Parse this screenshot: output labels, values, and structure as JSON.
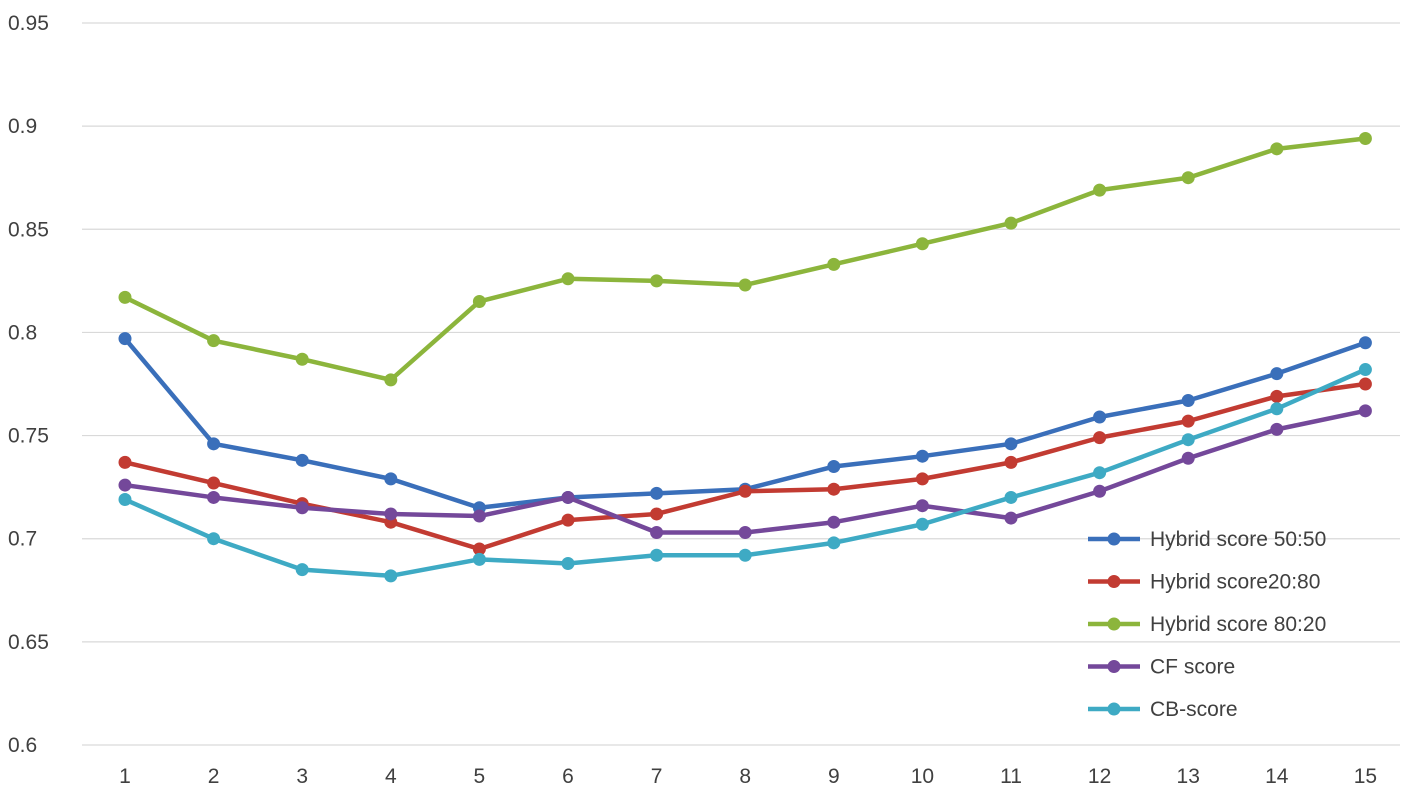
{
  "chart_data": {
    "type": "line",
    "title": "",
    "xlabel": "",
    "ylabel": "",
    "ylim": [
      0.6,
      0.95
    ],
    "y_ticks": [
      "0.6",
      "0.65",
      "0.7",
      "0.75",
      "0.8",
      "0.85",
      "0.9",
      "0.95"
    ],
    "grid": "horizontal",
    "legend_position": "bottom-right",
    "x": [
      "1",
      "2",
      "3",
      "4",
      "5",
      "6",
      "7",
      "8",
      "9",
      "10",
      "11",
      "12",
      "13",
      "14",
      "15"
    ],
    "series": [
      {
        "name": "Hybrid score 50:50",
        "color": "#3a6fba",
        "values": [
          0.797,
          0.746,
          0.738,
          0.729,
          0.715,
          0.72,
          0.722,
          0.724,
          0.735,
          0.74,
          0.746,
          0.759,
          0.767,
          0.78,
          0.795
        ]
      },
      {
        "name": "Hybrid score20:80",
        "color": "#c23b32",
        "values": [
          0.737,
          0.727,
          0.717,
          0.708,
          0.695,
          0.709,
          0.712,
          0.723,
          0.724,
          0.729,
          0.737,
          0.749,
          0.757,
          0.769,
          0.775
        ]
      },
      {
        "name": "Hybrid score 80:20",
        "color": "#8cb53c",
        "values": [
          0.817,
          0.796,
          0.787,
          0.777,
          0.815,
          0.826,
          0.825,
          0.823,
          0.833,
          0.843,
          0.853,
          0.869,
          0.875,
          0.889,
          0.894
        ]
      },
      {
        "name": "CF score",
        "color": "#74489a",
        "values": [
          0.726,
          0.72,
          0.715,
          0.712,
          0.711,
          0.72,
          0.703,
          0.703,
          0.708,
          0.716,
          0.71,
          0.723,
          0.739,
          0.753,
          0.762
        ]
      },
      {
        "name": "CB-score",
        "color": "#3eaac4",
        "values": [
          0.719,
          0.7,
          0.685,
          0.682,
          0.69,
          0.688,
          0.692,
          0.692,
          0.698,
          0.707,
          0.72,
          0.732,
          0.748,
          0.763,
          0.782
        ]
      }
    ]
  }
}
